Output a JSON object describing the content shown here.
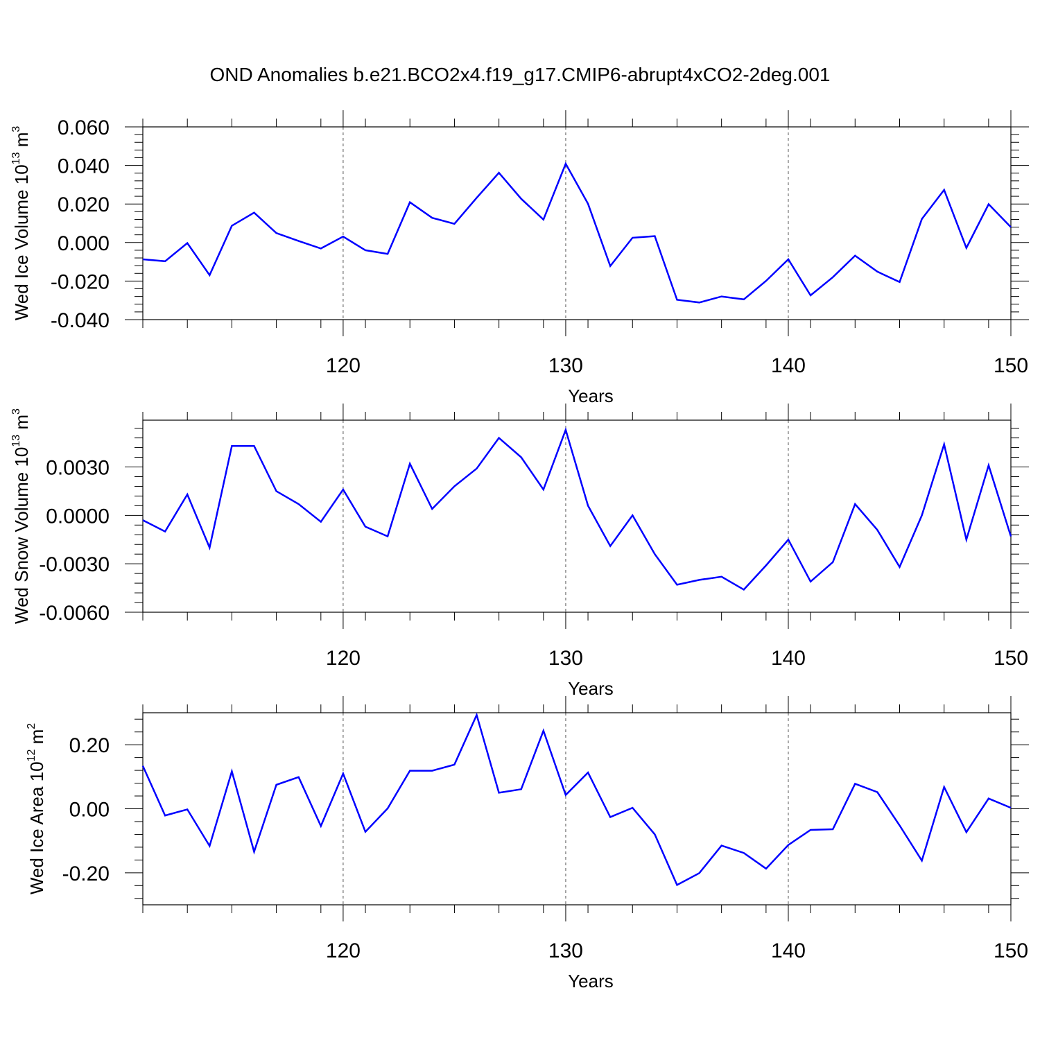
{
  "title": "OND Anomalies b.e21.BCO2x4.f19_g17.CMIP6-abrupt4xCO2-2deg.001",
  "line_color": "#0000ff",
  "chart_data": [
    {
      "type": "line",
      "ylabel": "Wed Ice Volume 10",
      "ylabel_exp": "13",
      "ylabel_unit": "m",
      "ylabel_unit_exp": "3",
      "xlabel": "Years",
      "xlim": [
        111,
        150
      ],
      "ylim": [
        -0.04,
        0.06
      ],
      "yticks": [
        -0.04,
        -0.02,
        0.0,
        0.02,
        0.04,
        0.06
      ],
      "ytick_labels": [
        "-0.040",
        "-0.020",
        "0.000",
        "0.020",
        "0.040",
        "0.060"
      ],
      "xticks": [
        120,
        130,
        140,
        150
      ],
      "xtick_labels": [
        "120",
        "130",
        "140",
        "150"
      ],
      "x": [
        111,
        112,
        113,
        114,
        115,
        116,
        117,
        118,
        119,
        120,
        121,
        122,
        123,
        124,
        125,
        126,
        127,
        128,
        129,
        130,
        131,
        132,
        133,
        134,
        135,
        136,
        137,
        138,
        139,
        140,
        141,
        142,
        143,
        144,
        145,
        146,
        147,
        148,
        149,
        150
      ],
      "values": [
        -0.0087,
        -0.0097,
        -0.0003,
        -0.0169,
        0.0087,
        0.0155,
        0.0049,
        0.0008,
        -0.0031,
        0.0031,
        -0.004,
        -0.0059,
        0.0209,
        0.0128,
        0.0097,
        0.0232,
        0.0362,
        0.0227,
        0.0119,
        0.0409,
        0.0201,
        -0.0122,
        0.0025,
        0.0033,
        -0.0297,
        -0.0311,
        -0.028,
        -0.0295,
        -0.0199,
        -0.0087,
        -0.0274,
        -0.018,
        -0.0068,
        -0.0151,
        -0.0205,
        0.0122,
        0.0273,
        -0.0028,
        0.0199,
        0.008
      ]
    },
    {
      "type": "line",
      "ylabel": "Wed Snow Volume 10",
      "ylabel_exp": "13",
      "ylabel_unit": "m",
      "ylabel_unit_exp": "3",
      "xlabel": "Years",
      "xlim": [
        111,
        150
      ],
      "ylim": [
        -0.006,
        0.0059
      ],
      "yticks": [
        -0.006,
        -0.003,
        0.0,
        0.003
      ],
      "ytick_labels": [
        "-0.0060",
        "-0.0030",
        "0.0000",
        "0.0030"
      ],
      "xticks": [
        120,
        130,
        140,
        150
      ],
      "xtick_labels": [
        "120",
        "130",
        "140",
        "150"
      ],
      "x": [
        111,
        112,
        113,
        114,
        115,
        116,
        117,
        118,
        119,
        120,
        121,
        122,
        123,
        124,
        125,
        126,
        127,
        128,
        129,
        130,
        131,
        132,
        133,
        134,
        135,
        136,
        137,
        138,
        139,
        140,
        141,
        142,
        143,
        144,
        145,
        146,
        147,
        148,
        149,
        150
      ],
      "values": [
        -0.0003,
        -0.001,
        0.0013,
        -0.002,
        0.0043,
        0.0043,
        0.0015,
        0.0007,
        -0.0004,
        0.0016,
        -0.0007,
        -0.0013,
        0.0032,
        0.0004,
        0.0018,
        0.0029,
        0.0048,
        0.0036,
        0.0016,
        0.0053,
        0.0006,
        -0.0019,
        0.0,
        -0.0024,
        -0.0043,
        -0.004,
        -0.0038,
        -0.0046,
        -0.0031,
        -0.0015,
        -0.0041,
        -0.0029,
        0.0007,
        -0.0009,
        -0.0032,
        0.0,
        0.0044,
        -0.0015,
        0.0031,
        -0.0013
      ]
    },
    {
      "type": "line",
      "ylabel": "Wed Ice Area 10",
      "ylabel_exp": "12",
      "ylabel_unit": "m",
      "ylabel_unit_exp": "2",
      "xlabel": "Years",
      "xlim": [
        111,
        150
      ],
      "ylim": [
        -0.3,
        0.3
      ],
      "yticks": [
        -0.2,
        0.0,
        0.2
      ],
      "ytick_labels": [
        "-0.20",
        "0.00",
        "0.20"
      ],
      "xticks": [
        120,
        130,
        140,
        150
      ],
      "xtick_labels": [
        "120",
        "130",
        "140",
        "150"
      ],
      "x": [
        111,
        112,
        113,
        114,
        115,
        116,
        117,
        118,
        119,
        120,
        121,
        122,
        123,
        124,
        125,
        126,
        127,
        128,
        129,
        130,
        131,
        132,
        133,
        134,
        135,
        136,
        137,
        138,
        139,
        140,
        141,
        142,
        143,
        144,
        145,
        146,
        147,
        148,
        149,
        150
      ],
      "values": [
        0.134,
        -0.021,
        -0.002,
        -0.116,
        0.117,
        -0.134,
        0.075,
        0.099,
        -0.054,
        0.11,
        -0.072,
        0.001,
        0.119,
        0.119,
        0.138,
        0.293,
        0.05,
        0.061,
        0.244,
        0.043,
        0.113,
        -0.026,
        0.003,
        -0.08,
        -0.238,
        -0.201,
        -0.115,
        -0.138,
        -0.187,
        -0.113,
        -0.066,
        -0.064,
        0.078,
        0.052,
        -0.052,
        -0.162,
        0.068,
        -0.073,
        0.032,
        0.003
      ]
    }
  ]
}
